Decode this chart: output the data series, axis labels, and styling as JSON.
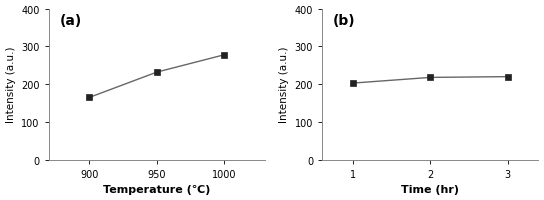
{
  "panel_a": {
    "x": [
      900,
      950,
      1000
    ],
    "y": [
      165,
      232,
      278
    ],
    "xlabel": "Temperature (℃)",
    "ylabel": "Intensity (a.u.)",
    "label": "(a)",
    "xlim": [
      870,
      1030
    ],
    "ylim": [
      0,
      400
    ],
    "xticks": [
      900,
      950,
      1000
    ],
    "yticks": [
      0,
      100,
      200,
      300,
      400
    ]
  },
  "panel_b": {
    "x": [
      1,
      2,
      3
    ],
    "y": [
      203,
      218,
      220
    ],
    "xlabel": "Time (hr)",
    "ylabel": "Intensity (a.u.)",
    "label": "(b)",
    "xlim": [
      0.6,
      3.4
    ],
    "ylim": [
      0,
      400
    ],
    "xticks": [
      1,
      2,
      3
    ],
    "yticks": [
      0,
      100,
      200,
      300,
      400
    ]
  },
  "line_color": "#666666",
  "marker": "s",
  "marker_color": "#222222",
  "marker_size": 4,
  "line_width": 1.0,
  "xlabel_fontsize": 8,
  "ylabel_fontsize": 7.5,
  "tick_fontsize": 7,
  "panel_label_fontsize": 10,
  "background_color": "#ffffff"
}
